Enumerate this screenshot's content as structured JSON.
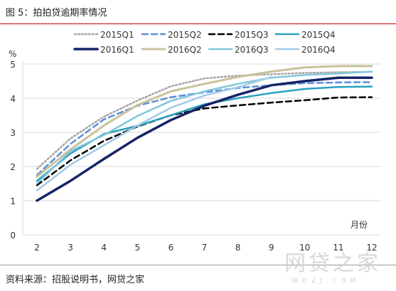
{
  "figure": {
    "title": "图 5：拍拍贷逾期率情况",
    "source": "资料来源：招股说明书，网贷之家",
    "watermark": "网贷之家",
    "watermark_url": "WDZJ.COM"
  },
  "chart_data": {
    "type": "line",
    "ylabel": "%",
    "xlabel": "月份",
    "xlim": [
      2,
      12
    ],
    "ylim": [
      0,
      5
    ],
    "x_ticks": [
      2,
      3,
      4,
      5,
      6,
      7,
      8,
      9,
      10,
      11,
      12
    ],
    "y_ticks": [
      0,
      1,
      2,
      3,
      4,
      5
    ],
    "legend_position": "top",
    "series": [
      {
        "name": "2015Q1",
        "color": "#a6a6a6",
        "dash": "dot",
        "width": 2.5,
        "x": [
          2,
          3,
          4,
          5,
          6,
          7,
          8,
          9,
          10,
          11,
          12
        ],
        "y": [
          1.93,
          2.82,
          3.46,
          3.93,
          4.35,
          4.58,
          4.66,
          4.7,
          4.74,
          4.76,
          4.77
        ]
      },
      {
        "name": "2015Q2",
        "color": "#5b8fd6",
        "dash": "dash",
        "width": 2.5,
        "x": [
          2,
          3,
          4,
          5,
          6,
          7,
          8,
          9,
          10,
          11,
          12
        ],
        "y": [
          1.75,
          2.66,
          3.38,
          3.78,
          4.03,
          4.17,
          4.3,
          4.38,
          4.44,
          4.46,
          4.47
        ]
      },
      {
        "name": "2015Q3",
        "color": "#000000",
        "dash": "dash",
        "width": 2.5,
        "x": [
          2,
          3,
          4,
          5,
          6,
          7,
          8,
          9,
          10,
          11,
          12
        ],
        "y": [
          1.45,
          2.18,
          2.75,
          3.17,
          3.5,
          3.7,
          3.79,
          3.87,
          3.94,
          4.02,
          4.03
        ]
      },
      {
        "name": "2015Q4",
        "color": "#2aa1bf",
        "dash": "solid",
        "width": 2.5,
        "x": [
          2,
          3,
          4,
          5,
          6,
          7,
          8,
          9,
          10,
          11,
          12
        ],
        "y": [
          1.58,
          2.38,
          2.95,
          3.19,
          3.5,
          3.82,
          4.0,
          4.15,
          4.27,
          4.33,
          4.34
        ]
      },
      {
        "name": "2016Q1",
        "color": "#172466",
        "dash": "solid",
        "width": 3.5,
        "x": [
          2,
          3,
          4,
          5,
          6,
          7,
          8,
          9,
          10,
          11,
          12
        ],
        "y": [
          1.0,
          1.58,
          2.22,
          2.84,
          3.36,
          3.78,
          4.1,
          4.38,
          4.5,
          4.6,
          4.6
        ]
      },
      {
        "name": "2016Q2",
        "color": "#c8c39a",
        "dash": "solid",
        "width": 3,
        "x": [
          2,
          3,
          4,
          5,
          6,
          7,
          8,
          9,
          10,
          11,
          12
        ],
        "y": [
          1.7,
          2.5,
          3.2,
          3.8,
          4.2,
          4.42,
          4.62,
          4.78,
          4.9,
          4.94,
          4.94
        ]
      },
      {
        "name": "2016Q3",
        "color": "#82c6dc",
        "dash": "solid",
        "width": 2.5,
        "x": [
          2,
          3,
          4,
          5,
          6,
          7,
          8,
          9,
          10,
          11,
          12
        ],
        "y": [
          1.5,
          2.45,
          2.92,
          3.48,
          3.92,
          4.2,
          4.42,
          4.6,
          4.68,
          4.72,
          4.78
        ]
      },
      {
        "name": "2016Q4",
        "color": "#a3c9e6",
        "dash": "solid",
        "width": 2.5,
        "x": [
          2,
          3,
          4,
          5,
          6,
          7,
          8,
          9
        ],
        "y": [
          1.3,
          2.05,
          2.62,
          3.2,
          3.72,
          4.08,
          4.32,
          4.62
        ]
      }
    ]
  }
}
